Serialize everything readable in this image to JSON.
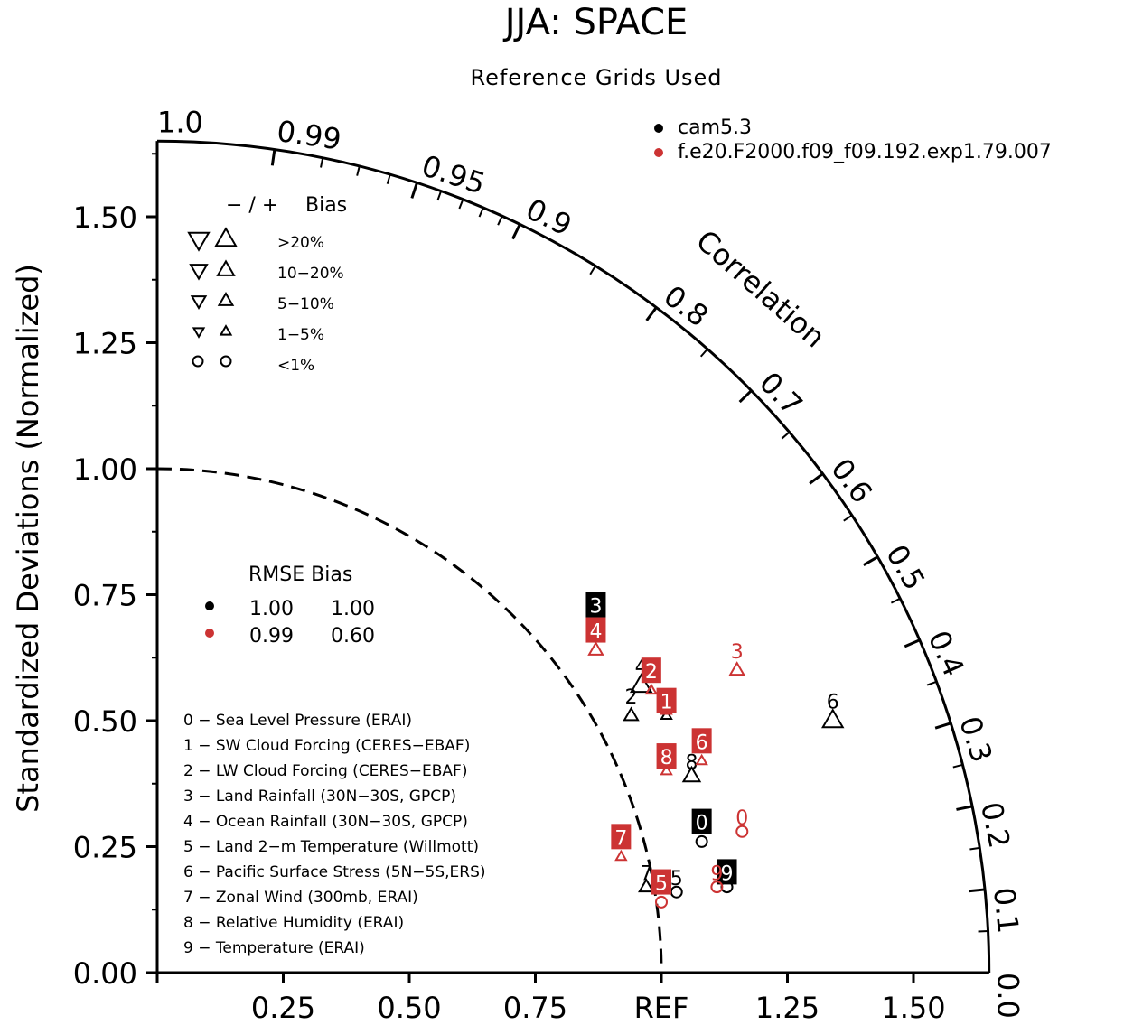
{
  "chart_data": {
    "type": "scatter",
    "subtype": "taylor-diagram",
    "title": "JJA: SPACE",
    "subtitle": "Reference Grids Used",
    "ylabel": "Standardized Deviations (Normalized)",
    "arc_label": "Correlation",
    "ref_label": "REF",
    "ylim": [
      0,
      1.65
    ],
    "y_ticks": [
      "0.00",
      "0.25",
      "0.50",
      "0.75",
      "1.00",
      "1.25",
      "1.50"
    ],
    "x_ticks": [
      "0.25",
      "0.50",
      "0.75",
      "REF",
      "1.25",
      "1.50"
    ],
    "corr_ticks": [
      "0.0",
      "0.1",
      "0.2",
      "0.3",
      "0.4",
      "0.5",
      "0.6",
      "0.7",
      "0.8",
      "0.9",
      "0.95",
      "0.99",
      "1.0"
    ],
    "colors": {
      "cam": "#000000",
      "exp": "#cc3333"
    },
    "models": [
      {
        "name": "cam5.3",
        "color": "#000000"
      },
      {
        "name": "f.e20.F2000.f09_f09.192.exp1.79.007",
        "color": "#cc3333"
      }
    ],
    "bias_legend": {
      "header_signs": "−  /  +",
      "header_bias": "Bias",
      "rows": [
        {
          "label": ">20%",
          "size": 22
        },
        {
          "label": "10−20%",
          "size": 18
        },
        {
          "label": "5−10%",
          "size": 15
        },
        {
          "label": "1−5%",
          "size": 11
        },
        {
          "label": "<1%",
          "size": 0
        }
      ]
    },
    "rmse_legend": {
      "header": "RMSE Bias",
      "rows": [
        {
          "rmse": "1.00",
          "bias": "1.00",
          "color": "#000000"
        },
        {
          "rmse": "0.99",
          "bias": "0.60",
          "color": "#cc3333"
        }
      ]
    },
    "variables": [
      "0 − Sea Level Pressure (ERAI)",
      "1 − SW Cloud Forcing (CERES−EBAF)",
      "2 − LW Cloud Forcing (CERES−EBAF)",
      "3 − Land Rainfall (30N−30S, GPCP)",
      "4 − Ocean Rainfall (30N−30S, GPCP)",
      "5 − Land 2−m Temperature (Willmott)",
      "6 − Pacific Surface Stress (5N−5S,ERS)",
      "7 − Zonal Wind (300mb, ERAI)",
      "8 − Relative Humidity (ERAI)",
      "9 − Temperature (ERAI)"
    ],
    "points": [
      {
        "model": 0,
        "id": "0",
        "x": 1.08,
        "y": 0.26,
        "marker": "circle",
        "label_box": true,
        "lx": 1.08,
        "ly": 0.3
      },
      {
        "model": 0,
        "id": "1",
        "x": 1.01,
        "y": 0.51,
        "marker": "up",
        "size": 11,
        "label_box": false,
        "lx": 1.01,
        "ly": 0.55
      },
      {
        "model": 0,
        "id": "2",
        "x": 0.94,
        "y": 0.51,
        "marker": "up",
        "size": 15,
        "label_box": false,
        "lx": 0.94,
        "ly": 0.55
      },
      {
        "model": 0,
        "id": "3",
        "x": 0.87,
        "y": 0.68,
        "marker": "up",
        "size": 18,
        "label_box": true,
        "lx": 0.87,
        "ly": 0.73
      },
      {
        "model": 0,
        "id": "4",
        "x": 0.96,
        "y": 0.57,
        "marker": "up",
        "size": 22,
        "label_box": false,
        "lx": 0.96,
        "ly": 0.61
      },
      {
        "model": 0,
        "id": "5",
        "x": 1.03,
        "y": 0.16,
        "marker": "circle",
        "label_box": false,
        "lx": 1.03,
        "ly": 0.19
      },
      {
        "model": 0,
        "id": "6",
        "x": 1.34,
        "y": 0.5,
        "marker": "up",
        "size": 22,
        "label_box": false,
        "lx": 1.34,
        "ly": 0.54
      },
      {
        "model": 0,
        "id": "7",
        "x": 0.97,
        "y": 0.17,
        "marker": "up",
        "size": 15,
        "label_box": false,
        "lx": 0.97,
        "ly": 0.2
      },
      {
        "model": 0,
        "id": "8",
        "x": 1.06,
        "y": 0.39,
        "marker": "up",
        "size": 18,
        "label_box": false,
        "lx": 1.06,
        "ly": 0.42
      },
      {
        "model": 0,
        "id": "9",
        "x": 1.13,
        "y": 0.17,
        "marker": "circle",
        "label_box": true,
        "lx": 1.13,
        "ly": 0.2
      },
      {
        "model": 1,
        "id": "0",
        "x": 1.16,
        "y": 0.28,
        "marker": "circle",
        "label_box": false,
        "lx": 1.16,
        "ly": 0.31
      },
      {
        "model": 1,
        "id": "1",
        "x": 1.01,
        "y": 0.52,
        "marker": "up",
        "size": 11,
        "label_box": true,
        "lx": 1.01,
        "ly": 0.54
      },
      {
        "model": 1,
        "id": "2",
        "x": 0.98,
        "y": 0.56,
        "marker": "up",
        "size": 11,
        "label_box": true,
        "lx": 0.98,
        "ly": 0.6
      },
      {
        "model": 1,
        "id": "3",
        "x": 1.15,
        "y": 0.6,
        "marker": "up",
        "size": 15,
        "label_box": false,
        "lx": 1.15,
        "ly": 0.64
      },
      {
        "model": 1,
        "id": "4",
        "x": 0.87,
        "y": 0.64,
        "marker": "up",
        "size": 15,
        "label_box": true,
        "lx": 0.87,
        "ly": 0.68
      },
      {
        "model": 1,
        "id": "5",
        "x": 1.0,
        "y": 0.14,
        "marker": "circle",
        "label_box": true,
        "lx": 1.0,
        "ly": 0.18
      },
      {
        "model": 1,
        "id": "6",
        "x": 1.08,
        "y": 0.42,
        "marker": "up",
        "size": 11,
        "label_box": true,
        "lx": 1.08,
        "ly": 0.46
      },
      {
        "model": 1,
        "id": "7",
        "x": 0.92,
        "y": 0.23,
        "marker": "up",
        "size": 11,
        "label_box": true,
        "lx": 0.92,
        "ly": 0.27
      },
      {
        "model": 1,
        "id": "8",
        "x": 1.01,
        "y": 0.4,
        "marker": "up",
        "size": 11,
        "label_box": true,
        "lx": 1.01,
        "ly": 0.43
      },
      {
        "model": 1,
        "id": "9",
        "x": 1.11,
        "y": 0.17,
        "marker": "circle",
        "label_box": false,
        "lx": 1.11,
        "ly": 0.2
      }
    ]
  }
}
